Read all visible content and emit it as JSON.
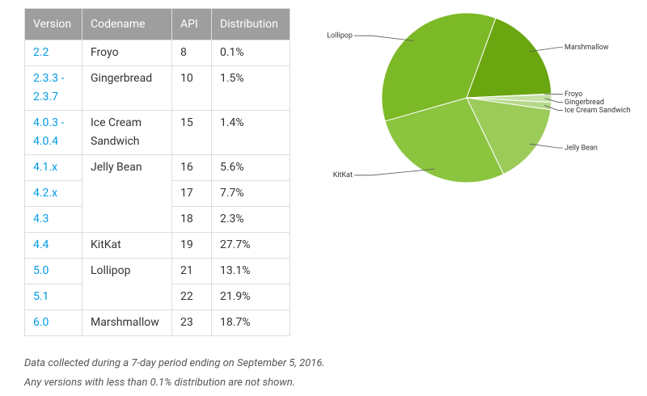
{
  "table": {
    "header": [
      "Version",
      "Codename",
      "API",
      "Distribution"
    ],
    "rows": [
      {
        "version": "2.2",
        "codename": "Froyo",
        "api": "8",
        "distribution": "0.1%"
      },
      {
        "version": "2.3.3 - 2.3.7",
        "codename": "Gingerbread",
        "api": "10",
        "distribution": "1.5%"
      },
      {
        "version": "4.0.3 - 4.0.4",
        "codename": "Ice Cream Sandwich",
        "api": "15",
        "distribution": "1.4%"
      },
      {
        "version": "4.1.x",
        "codename": "Jelly Bean",
        "api": "16",
        "distribution": "5.6%",
        "span": 3
      },
      {
        "version": "4.2.x",
        "api": "17",
        "distribution": "7.7%"
      },
      {
        "version": "4.3",
        "api": "18",
        "distribution": "2.3%"
      },
      {
        "version": "4.4",
        "codename": "KitKat",
        "api": "19",
        "distribution": "27.7%"
      },
      {
        "version": "5.0",
        "codename": "Lollipop",
        "api": "21",
        "distribution": "13.1%",
        "span": 2
      },
      {
        "version": "5.1",
        "api": "22",
        "distribution": "21.9%"
      },
      {
        "version": "6.0",
        "codename": "Marshmallow",
        "api": "23",
        "distribution": "18.7%"
      }
    ]
  },
  "chart_data": {
    "type": "pie",
    "categories": [
      "Marshmallow",
      "Froyo",
      "Gingerbread",
      "Ice Cream Sandwich",
      "Jelly Bean",
      "KitKat",
      "Lollipop"
    ],
    "values": [
      18.7,
      0.1,
      1.5,
      1.4,
      15.6,
      27.7,
      35.0
    ],
    "colors": [
      "#6aa60f",
      "#c5e1a5",
      "#c5e1a5",
      "#b5d98a",
      "#9ccb5a",
      "#8bc43f",
      "#7cb926"
    ]
  },
  "notes": [
    "Data collected during a 7-day period ending on September 5, 2016.",
    "Any versions with less than 0.1% distribution are not shown."
  ]
}
